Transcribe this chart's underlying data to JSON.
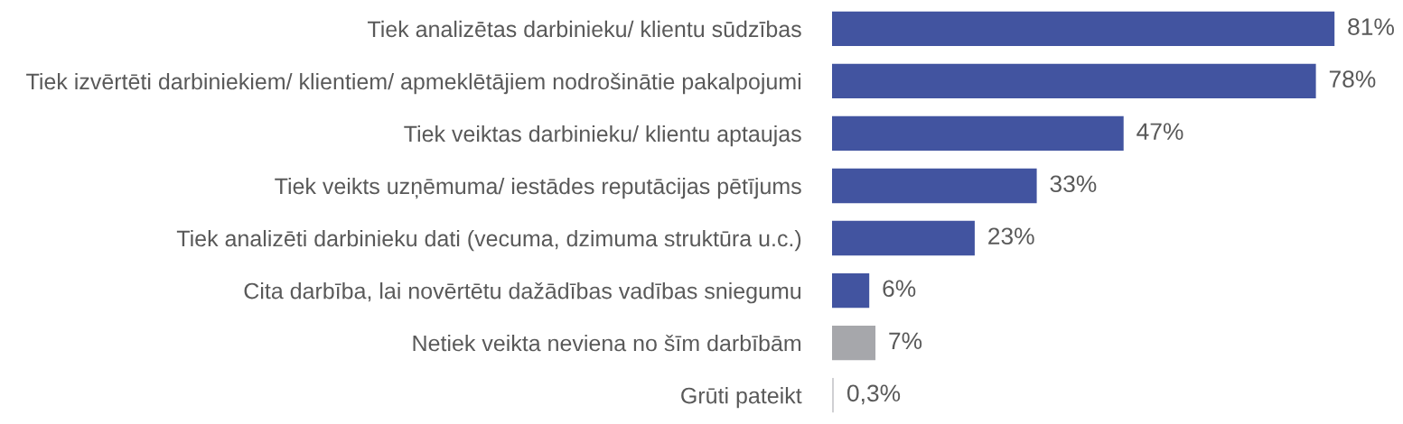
{
  "chart_data": {
    "type": "bar",
    "orientation": "horizontal",
    "categories": [
      "Tiek analizētas darbinieku/ klientu sūdzības",
      "Tiek izvērtēti darbiniekiem/ klientiem/ apmeklētājiem nodrošinātie pakalpojumi",
      "Tiek veiktas darbinieku/ klientu aptaujas",
      "Tiek veikts uzņēmuma/ iestādes reputācijas pētījums",
      "Tiek analizēti darbinieku dati (vecuma, dzimuma struktūra u.c.)",
      "Cita darbība, lai novērtētu dažādības vadības sniegumu",
      "Netiek veikta neviena no šīm darbībām",
      "Grūti pateikt"
    ],
    "values": [
      81,
      78,
      47,
      33,
      23,
      6,
      7,
      0.3
    ],
    "value_labels": [
      "81%",
      "78%",
      "47%",
      "33%",
      "23%",
      "6%",
      "7%",
      "0,3%"
    ],
    "colors": [
      "#4254a0",
      "#4254a0",
      "#4254a0",
      "#4254a0",
      "#4254a0",
      "#4254a0",
      "#a6a7ab",
      "#d0d0d3"
    ],
    "tick_labels": "y",
    "grid": false,
    "legend": false
  }
}
